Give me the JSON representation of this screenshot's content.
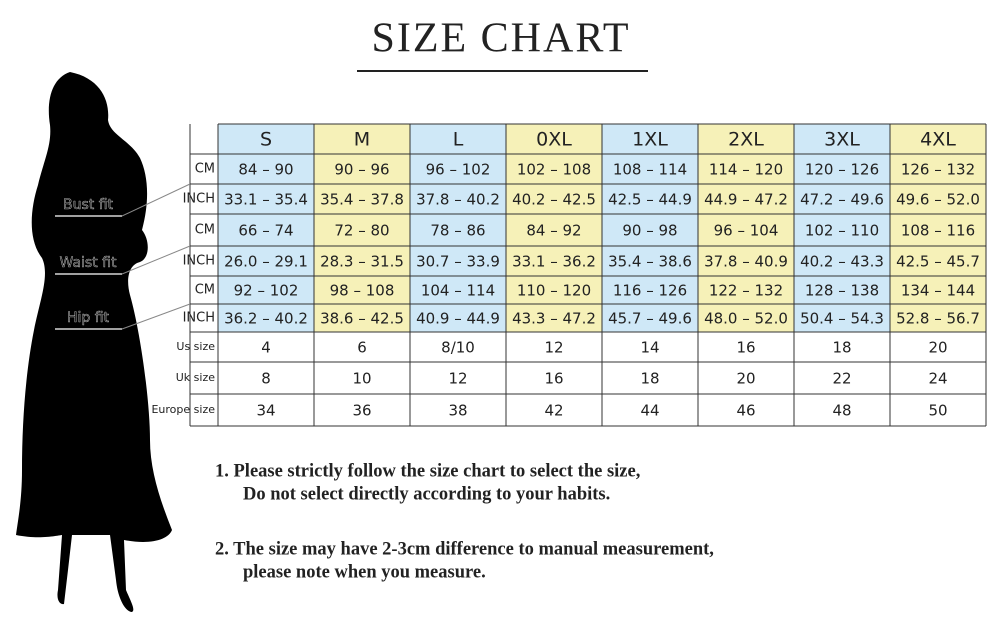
{
  "title": "SIZE CHART",
  "fit_labels": [
    "Bust fit",
    "Waist fit",
    "Hip fit"
  ],
  "table": {
    "header": [
      "S",
      "M",
      "L",
      "0XL",
      "1XL",
      "2XL",
      "3XL",
      "4XL"
    ],
    "rows": [
      {
        "unit": "CM",
        "values": [
          "84 – 90",
          "90 – 96",
          "96 – 102",
          "102 – 108",
          "108 – 114",
          "114 – 120",
          "120 – 126",
          "126 – 132"
        ]
      },
      {
        "unit": "INCH",
        "values": [
          "33.1 – 35.4",
          "35.4 – 37.8",
          "37.8 – 40.2",
          "40.2 – 42.5",
          "42.5 – 44.9",
          "44.9 – 47.2",
          "47.2 – 49.6",
          "49.6 – 52.0"
        ]
      },
      {
        "unit": "CM",
        "values": [
          "66 – 74",
          "72 – 80",
          "78 – 86",
          "84 – 92",
          "90 – 98",
          "96 – 104",
          "102 – 110",
          "108 – 116"
        ]
      },
      {
        "unit": "INCH",
        "values": [
          "26.0 – 29.1",
          "28.3 – 31.5",
          "30.7 – 33.9",
          "33.1 – 36.2",
          "35.4 – 38.6",
          "37.8 – 40.9",
          "40.2 – 43.3",
          "42.5 – 45.7"
        ]
      },
      {
        "unit": "CM",
        "values": [
          "92 – 102",
          "98 – 108",
          "104 – 114",
          "110 – 120",
          "116 – 126",
          "122 – 132",
          "128 – 138",
          "134 – 144"
        ]
      },
      {
        "unit": "INCH",
        "values": [
          "36.2 – 40.2",
          "38.6 – 42.5",
          "40.9 – 44.9",
          "43.3 – 47.2",
          "45.7 – 49.6",
          "48.0 – 52.0",
          "50.4 – 54.3",
          "52.8 – 56.7"
        ]
      },
      {
        "unit": "Us size",
        "values": [
          "4",
          "6",
          "8/10",
          "12",
          "14",
          "16",
          "18",
          "20"
        ]
      },
      {
        "unit": "Uk size",
        "values": [
          "8",
          "10",
          "12",
          "16",
          "18",
          "20",
          "22",
          "24"
        ]
      },
      {
        "unit": "Europe size",
        "values": [
          "34",
          "36",
          "38",
          "42",
          "44",
          "46",
          "48",
          "50"
        ]
      }
    ]
  },
  "notes": [
    [
      "1.  Please strictly follow the size chart to select the size,",
      "Do not select directly according to your habits."
    ],
    [
      "2.  The size may have 2-3cm difference  to manual measurement,",
      "please note when you measure."
    ]
  ]
}
